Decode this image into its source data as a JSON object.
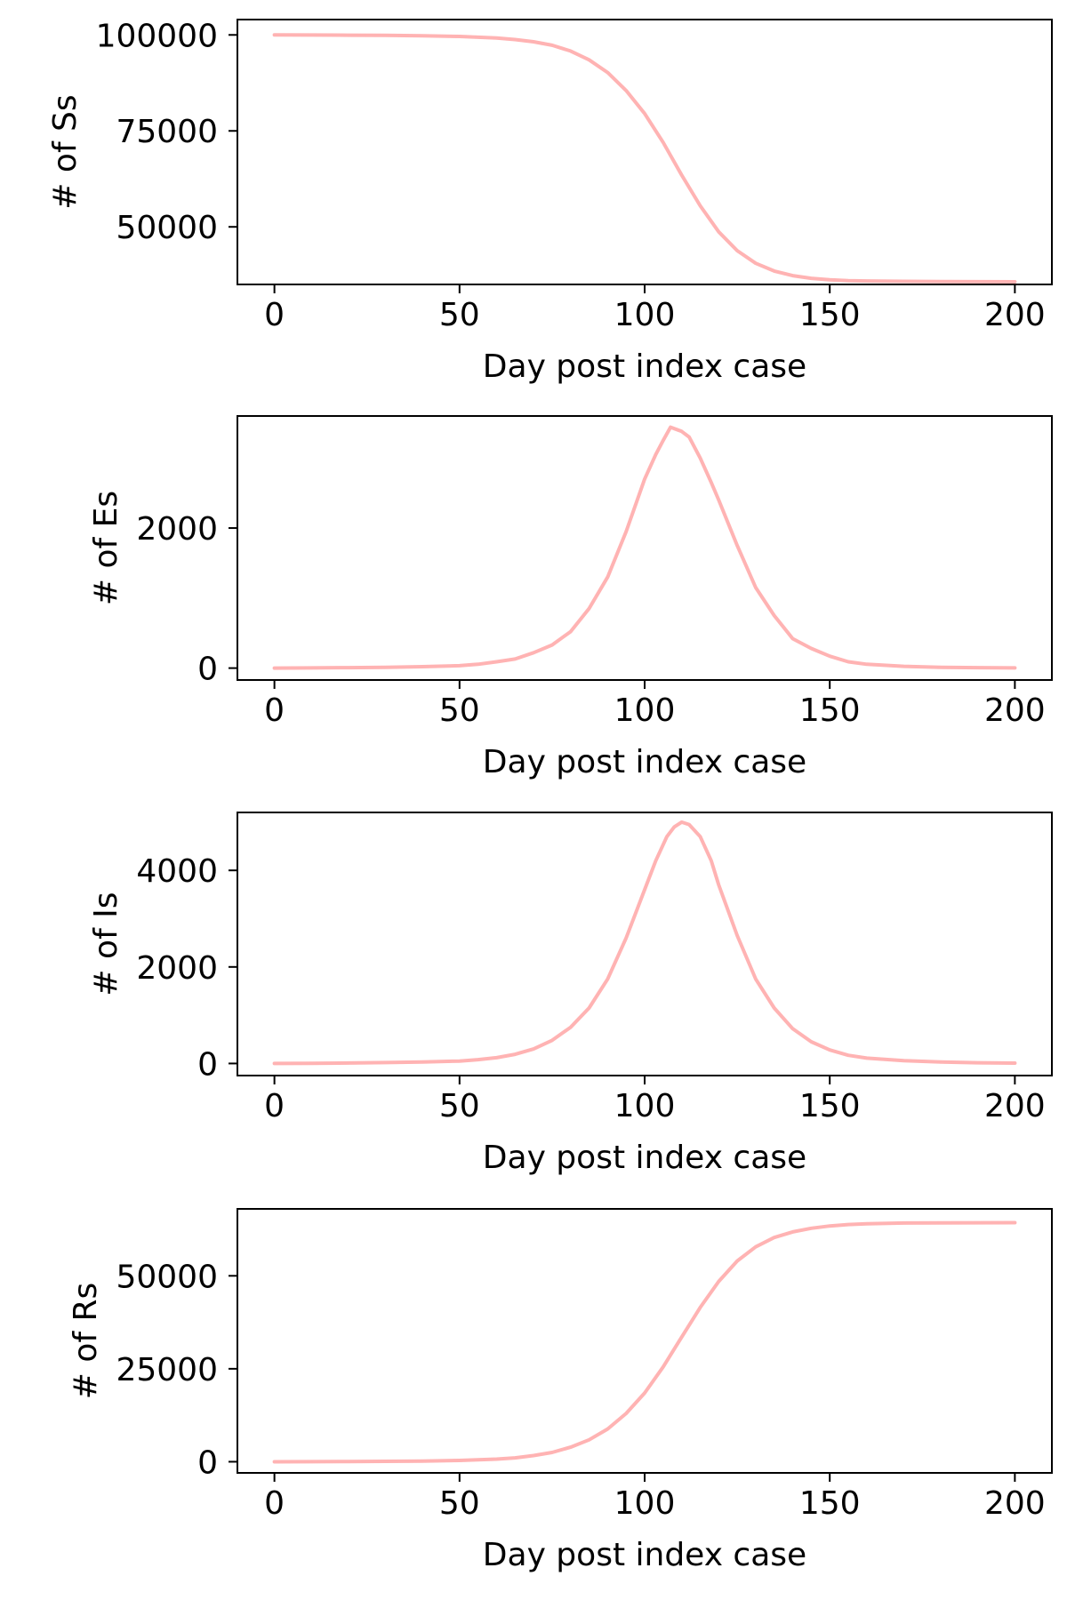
{
  "chart_data": [
    {
      "type": "line",
      "xlabel": "Day post index case",
      "ylabel": "# of Ss",
      "xlim": [
        -10,
        210
      ],
      "ylim": [
        35000,
        104000
      ],
      "xticks": [
        0,
        50,
        100,
        150,
        200
      ],
      "yticks": [
        50000,
        75000,
        100000
      ],
      "xtick_labels": [
        "0",
        "50",
        "100",
        "150",
        "200"
      ],
      "ytick_labels": [
        "50000",
        "75000",
        "100000"
      ],
      "color": "#ffb3b3",
      "grid": false,
      "series": [
        {
          "x": [
            0,
            10,
            20,
            30,
            40,
            50,
            60,
            65,
            70,
            75,
            80,
            85,
            90,
            95,
            100,
            105,
            110,
            115,
            120,
            125,
            130,
            135,
            140,
            145,
            150,
            155,
            160,
            170,
            180,
            190,
            200
          ],
          "values": [
            100000,
            99970,
            99930,
            99870,
            99780,
            99600,
            99200,
            98800,
            98200,
            97300,
            95800,
            93500,
            90200,
            85500,
            79500,
            72000,
            63500,
            55500,
            48700,
            43800,
            40500,
            38500,
            37300,
            36600,
            36200,
            36000,
            35900,
            35800,
            35750,
            35720,
            35700
          ]
        }
      ]
    },
    {
      "type": "line",
      "xlabel": "Day post index case",
      "ylabel": "# of Es",
      "xlim": [
        -10,
        210
      ],
      "ylim": [
        -170,
        3600
      ],
      "xticks": [
        0,
        50,
        100,
        150,
        200
      ],
      "yticks": [
        0,
        2000
      ],
      "xtick_labels": [
        "0",
        "50",
        "100",
        "150",
        "200"
      ],
      "ytick_labels": [
        "0",
        "2000"
      ],
      "color": "#ffb3b3",
      "grid": false,
      "series": [
        {
          "x": [
            0,
            10,
            20,
            30,
            40,
            50,
            55,
            60,
            65,
            70,
            75,
            80,
            85,
            90,
            95,
            100,
            103,
            105,
            107,
            110,
            112,
            115,
            118,
            120,
            125,
            130,
            135,
            140,
            145,
            150,
            155,
            160,
            170,
            180,
            190,
            200
          ],
          "values": [
            0,
            3,
            6,
            12,
            20,
            35,
            55,
            90,
            130,
            220,
            330,
            520,
            850,
            1300,
            1950,
            2700,
            3050,
            3250,
            3440,
            3380,
            3300,
            3000,
            2650,
            2400,
            1750,
            1150,
            750,
            420,
            280,
            170,
            90,
            55,
            25,
            12,
            6,
            3
          ]
        }
      ]
    },
    {
      "type": "line",
      "xlabel": "Day post index case",
      "ylabel": "# of Is",
      "xlim": [
        -10,
        210
      ],
      "ylim": [
        -250,
        5200
      ],
      "xticks": [
        0,
        50,
        100,
        150,
        200
      ],
      "yticks": [
        0,
        2000,
        4000
      ],
      "xtick_labels": [
        "0",
        "50",
        "100",
        "150",
        "200"
      ],
      "ytick_labels": [
        "0",
        "2000",
        "4000"
      ],
      "color": "#ffb3b3",
      "grid": false,
      "series": [
        {
          "x": [
            0,
            10,
            20,
            30,
            40,
            50,
            55,
            60,
            65,
            70,
            75,
            80,
            85,
            90,
            95,
            100,
            103,
            106,
            108,
            110,
            112,
            115,
            118,
            120,
            125,
            130,
            135,
            140,
            145,
            150,
            155,
            160,
            170,
            180,
            190,
            200
          ],
          "values": [
            0,
            5,
            10,
            18,
            30,
            50,
            80,
            120,
            190,
            300,
            480,
            750,
            1150,
            1750,
            2600,
            3600,
            4200,
            4700,
            4900,
            5000,
            4950,
            4700,
            4200,
            3700,
            2650,
            1750,
            1150,
            720,
            450,
            280,
            170,
            110,
            60,
            30,
            15,
            8
          ]
        }
      ]
    },
    {
      "type": "line",
      "xlabel": "Day post index case",
      "ylabel": "# of Rs",
      "xlim": [
        -10,
        210
      ],
      "ylim": [
        -3000,
        68000
      ],
      "xticks": [
        0,
        50,
        100,
        150,
        200
      ],
      "yticks": [
        0,
        25000,
        50000
      ],
      "xtick_labels": [
        "0",
        "50",
        "100",
        "150",
        "200"
      ],
      "ytick_labels": [
        "0",
        "25000",
        "50000"
      ],
      "color": "#ffb3b3",
      "grid": false,
      "series": [
        {
          "x": [
            0,
            10,
            20,
            30,
            40,
            50,
            60,
            65,
            70,
            75,
            80,
            85,
            90,
            95,
            100,
            105,
            110,
            115,
            120,
            125,
            130,
            135,
            140,
            145,
            150,
            155,
            160,
            170,
            180,
            190,
            200
          ],
          "values": [
            0,
            20,
            50,
            100,
            180,
            350,
            700,
            1050,
            1650,
            2500,
            3900,
            5900,
            8800,
            13000,
            18500,
            25500,
            33500,
            41500,
            48500,
            54000,
            57800,
            60300,
            61800,
            62800,
            63400,
            63800,
            64000,
            64200,
            64250,
            64280,
            64300
          ]
        }
      ]
    }
  ]
}
